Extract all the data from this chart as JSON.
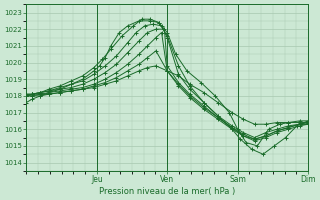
{
  "bg_color": "#cce8d4",
  "grid_color": "#a8c8b0",
  "line_color": "#1a6b2a",
  "xlabel": "Pression niveau de la mer( hPa )",
  "ylim": [
    1013.5,
    1023.5
  ],
  "yticks": [
    1014,
    1015,
    1016,
    1017,
    1018,
    1019,
    1020,
    1021,
    1022,
    1023
  ],
  "xlim": [
    0.0,
    1.0
  ],
  "day_labels": [
    "Jeu",
    "Ven",
    "Sam",
    "Dim"
  ],
  "day_positions": [
    0.25,
    0.5,
    0.75,
    1.0
  ],
  "series": [
    {
      "x": [
        0.0,
        0.02,
        0.05,
        0.08,
        0.12,
        0.16,
        0.2,
        0.24,
        0.26,
        0.28,
        0.3,
        0.33,
        0.36,
        0.4,
        0.44,
        0.47,
        0.5,
        0.53,
        0.57,
        0.62,
        0.67,
        0.72,
        0.75,
        0.78,
        0.82,
        0.86,
        0.9,
        0.93,
        0.97,
        1.0
      ],
      "y": [
        1017.6,
        1017.8,
        1018.0,
        1018.2,
        1018.4,
        1018.7,
        1019.0,
        1019.5,
        1019.8,
        1020.3,
        1021.0,
        1021.8,
        1022.2,
        1022.5,
        1022.5,
        1022.4,
        1021.8,
        1020.5,
        1019.5,
        1018.8,
        1018.0,
        1017.0,
        1016.0,
        1015.2,
        1015.0,
        1016.0,
        1016.3,
        1016.4,
        1016.4,
        1016.4
      ]
    },
    {
      "x": [
        0.0,
        0.02,
        0.05,
        0.08,
        0.12,
        0.16,
        0.2,
        0.24,
        0.27,
        0.3,
        0.34,
        0.38,
        0.41,
        0.44,
        0.47,
        0.5,
        0.54,
        0.58,
        0.63,
        0.68,
        0.73,
        0.76,
        0.8,
        0.84,
        0.88,
        0.92,
        0.96,
        1.0
      ],
      "y": [
        1018.0,
        1018.1,
        1018.2,
        1018.4,
        1018.6,
        1018.9,
        1019.2,
        1019.7,
        1020.2,
        1020.8,
        1021.6,
        1022.2,
        1022.6,
        1022.6,
        1022.4,
        1021.6,
        1019.8,
        1018.6,
        1017.6,
        1016.8,
        1016.0,
        1015.4,
        1014.8,
        1014.5,
        1015.0,
        1015.5,
        1016.2,
        1016.5
      ]
    },
    {
      "x": [
        0.0,
        0.02,
        0.05,
        0.08,
        0.12,
        0.16,
        0.2,
        0.24,
        0.28,
        0.32,
        0.36,
        0.39,
        0.42,
        0.45,
        0.48,
        0.5,
        0.54,
        0.58,
        0.63,
        0.68,
        0.73,
        0.77,
        0.81,
        0.85,
        0.89,
        0.93,
        0.97,
        1.0
      ],
      "y": [
        1018.1,
        1018.1,
        1018.2,
        1018.3,
        1018.5,
        1018.7,
        1018.9,
        1019.3,
        1019.8,
        1020.4,
        1021.2,
        1021.8,
        1022.2,
        1022.3,
        1022.2,
        1021.5,
        1019.3,
        1018.4,
        1017.6,
        1016.8,
        1016.2,
        1015.8,
        1015.5,
        1015.8,
        1016.0,
        1016.2,
        1016.3,
        1016.4
      ]
    },
    {
      "x": [
        0.0,
        0.02,
        0.05,
        0.08,
        0.12,
        0.16,
        0.2,
        0.24,
        0.28,
        0.32,
        0.36,
        0.4,
        0.43,
        0.46,
        0.49,
        0.5,
        0.54,
        0.58,
        0.63,
        0.68,
        0.73,
        0.77,
        0.81,
        0.85,
        0.89,
        0.93,
        0.97,
        1.0
      ],
      "y": [
        1018.1,
        1018.1,
        1018.2,
        1018.3,
        1018.4,
        1018.5,
        1018.7,
        1019.0,
        1019.4,
        1019.9,
        1020.6,
        1021.3,
        1021.8,
        1022.0,
        1022.0,
        1019.8,
        1018.8,
        1018.1,
        1017.4,
        1016.7,
        1016.1,
        1015.6,
        1015.4,
        1015.6,
        1015.9,
        1016.1,
        1016.3,
        1016.3
      ]
    },
    {
      "x": [
        0.0,
        0.02,
        0.05,
        0.08,
        0.12,
        0.16,
        0.2,
        0.24,
        0.28,
        0.32,
        0.36,
        0.4,
        0.43,
        0.46,
        0.48,
        0.5,
        0.54,
        0.58,
        0.63,
        0.68,
        0.73,
        0.77,
        0.81,
        0.85,
        0.89,
        0.93,
        0.97,
        1.0
      ],
      "y": [
        1018.0,
        1018.1,
        1018.1,
        1018.2,
        1018.3,
        1018.4,
        1018.5,
        1018.7,
        1019.0,
        1019.4,
        1019.9,
        1020.5,
        1021.0,
        1021.5,
        1021.8,
        1019.5,
        1018.6,
        1017.9,
        1017.2,
        1016.6,
        1016.0,
        1015.6,
        1015.3,
        1015.5,
        1015.8,
        1016.0,
        1016.2,
        1016.3
      ]
    },
    {
      "x": [
        0.0,
        0.02,
        0.05,
        0.08,
        0.12,
        0.16,
        0.2,
        0.24,
        0.28,
        0.32,
        0.36,
        0.4,
        0.43,
        0.46,
        0.5,
        0.54,
        0.58,
        0.63,
        0.68,
        0.73,
        0.77,
        0.81,
        0.85,
        0.89,
        0.93,
        0.97,
        1.0
      ],
      "y": [
        1018.0,
        1018.0,
        1018.1,
        1018.1,
        1018.2,
        1018.3,
        1018.4,
        1018.6,
        1018.8,
        1019.1,
        1019.5,
        1019.9,
        1020.3,
        1020.7,
        1019.5,
        1018.7,
        1018.0,
        1017.3,
        1016.7,
        1016.1,
        1015.7,
        1015.4,
        1015.6,
        1015.9,
        1016.1,
        1016.3,
        1016.3
      ]
    },
    {
      "x": [
        0.0,
        0.02,
        0.05,
        0.08,
        0.12,
        0.16,
        0.2,
        0.24,
        0.28,
        0.32,
        0.36,
        0.4,
        0.43,
        0.46,
        0.5,
        0.54,
        0.58,
        0.63,
        0.68,
        0.73,
        0.77,
        0.81,
        0.85,
        0.89,
        0.93,
        0.97,
        1.0
      ],
      "y": [
        1018.0,
        1018.0,
        1018.0,
        1018.1,
        1018.2,
        1018.3,
        1018.4,
        1018.5,
        1018.7,
        1018.9,
        1019.2,
        1019.5,
        1019.7,
        1019.8,
        1019.5,
        1019.2,
        1018.7,
        1018.2,
        1017.6,
        1017.0,
        1016.6,
        1016.3,
        1016.3,
        1016.4,
        1016.4,
        1016.5,
        1016.5
      ]
    }
  ]
}
